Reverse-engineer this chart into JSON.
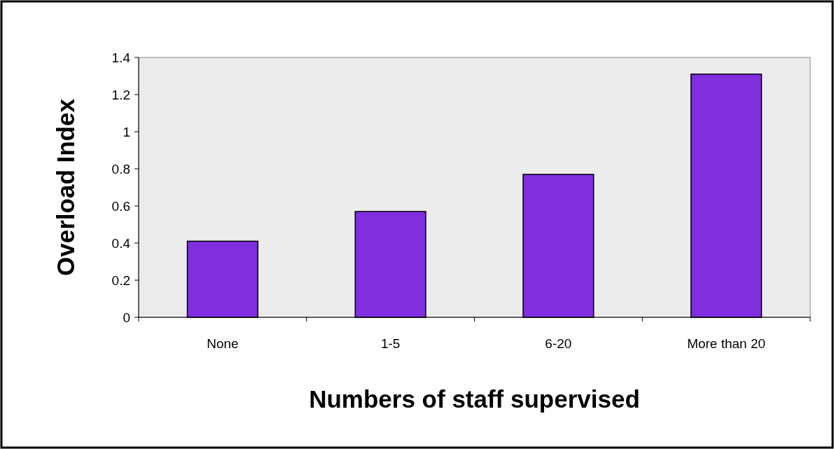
{
  "chart_data": {
    "type": "bar",
    "xlabel": "Numbers of staff supervised",
    "ylabel": "Overload Index",
    "categories": [
      "None",
      "1-5",
      "6-20",
      "More than 20"
    ],
    "values": [
      0.41,
      0.57,
      0.77,
      1.31
    ],
    "color": "#7f2fe0",
    "ylim": [
      0,
      1.4
    ],
    "yticks": [
      0,
      {
        "value": 0.2,
        "label": "0.2"
      },
      {
        "value": 0.4,
        "label": "0.4"
      },
      {
        "value": 0.6,
        "label": "0.6"
      },
      {
        "value": 0.8,
        "label": "0.8"
      },
      1,
      {
        "value": 1.2,
        "label": "1.2"
      },
      {
        "value": 1.4,
        "label": "1.4"
      }
    ],
    "grid": false
  }
}
